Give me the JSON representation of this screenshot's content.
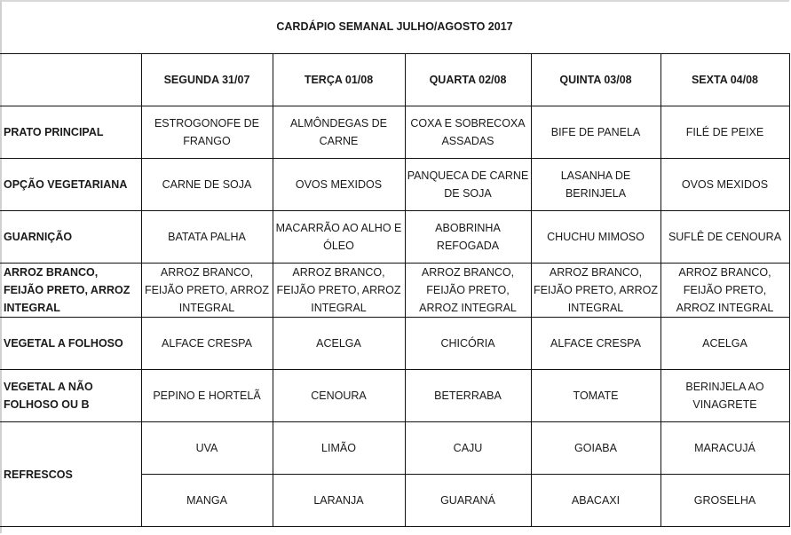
{
  "title": "CARDÁPIO SEMANAL JULHO/AGOSTO 2017",
  "days": [
    "SEGUNDA   31/07",
    "TERÇA 01/08",
    "QUARTA 02/08",
    "QUINTA 03/08",
    "SEXTA 04/08"
  ],
  "rows": [
    {
      "label": "PRATO PRINCIPAL",
      "cells": [
        "ESTROGONOFE DE FRANGO",
        "ALMÔNDEGAS DE CARNE",
        "COXA E SOBRECOXA ASSADAS",
        "BIFE DE PANELA",
        "FILÉ DE PEIXE"
      ]
    },
    {
      "label": "OPÇÃO VEGETARIANA",
      "cells": [
        "CARNE DE SOJA",
        "OVOS MEXIDOS",
        "PANQUECA DE CARNE DE SOJA",
        "LASANHA DE BERINJELA",
        "OVOS MEXIDOS"
      ]
    },
    {
      "label": "GUARNIÇÃO",
      "cells": [
        "BATATA PALHA",
        "MACARRÃO AO ALHO E ÓLEO",
        "ABOBRINHA REFOGADA",
        "CHUCHU MIMOSO",
        "SUFLÊ DE CENOURA"
      ]
    },
    {
      "label": "ARROZ BRANCO, FEIJÃO PRETO, ARROZ INTEGRAL",
      "cells": [
        "ARROZ BRANCO, FEIJÃO PRETO, ARROZ INTEGRAL",
        "ARROZ BRANCO, FEIJÃO PRETO, ARROZ INTEGRAL",
        "ARROZ BRANCO, FEIJÃO PRETO, ARROZ INTEGRAL",
        "ARROZ BRANCO, FEIJÃO PRETO, ARROZ INTEGRAL",
        "ARROZ BRANCO, FEIJÃO PRETO, ARROZ INTEGRAL"
      ]
    },
    {
      "label": "VEGETAL A FOLHOSO",
      "cells": [
        "ALFACE CRESPA",
        "ACELGA",
        "CHICÓRIA",
        "ALFACE CRESPA",
        "ACELGA"
      ]
    },
    {
      "label": "VEGETAL A NÃO FOLHOSO OU B",
      "cells": [
        "PEPINO E HORTELÃ",
        "CENOURA",
        "BETERRABA",
        "TOMATE",
        "BERINJELA AO VINAGRETE"
      ]
    }
  ],
  "refrescos": {
    "label": "REFRESCOS",
    "row1": [
      "UVA",
      "LIMÃO",
      "CAJU",
      "GOIABA",
      "MARACUJÁ"
    ],
    "row2": [
      "MANGA",
      "LARANJA",
      "GUARANÁ",
      "ABACAXI",
      "GROSELHA"
    ]
  }
}
